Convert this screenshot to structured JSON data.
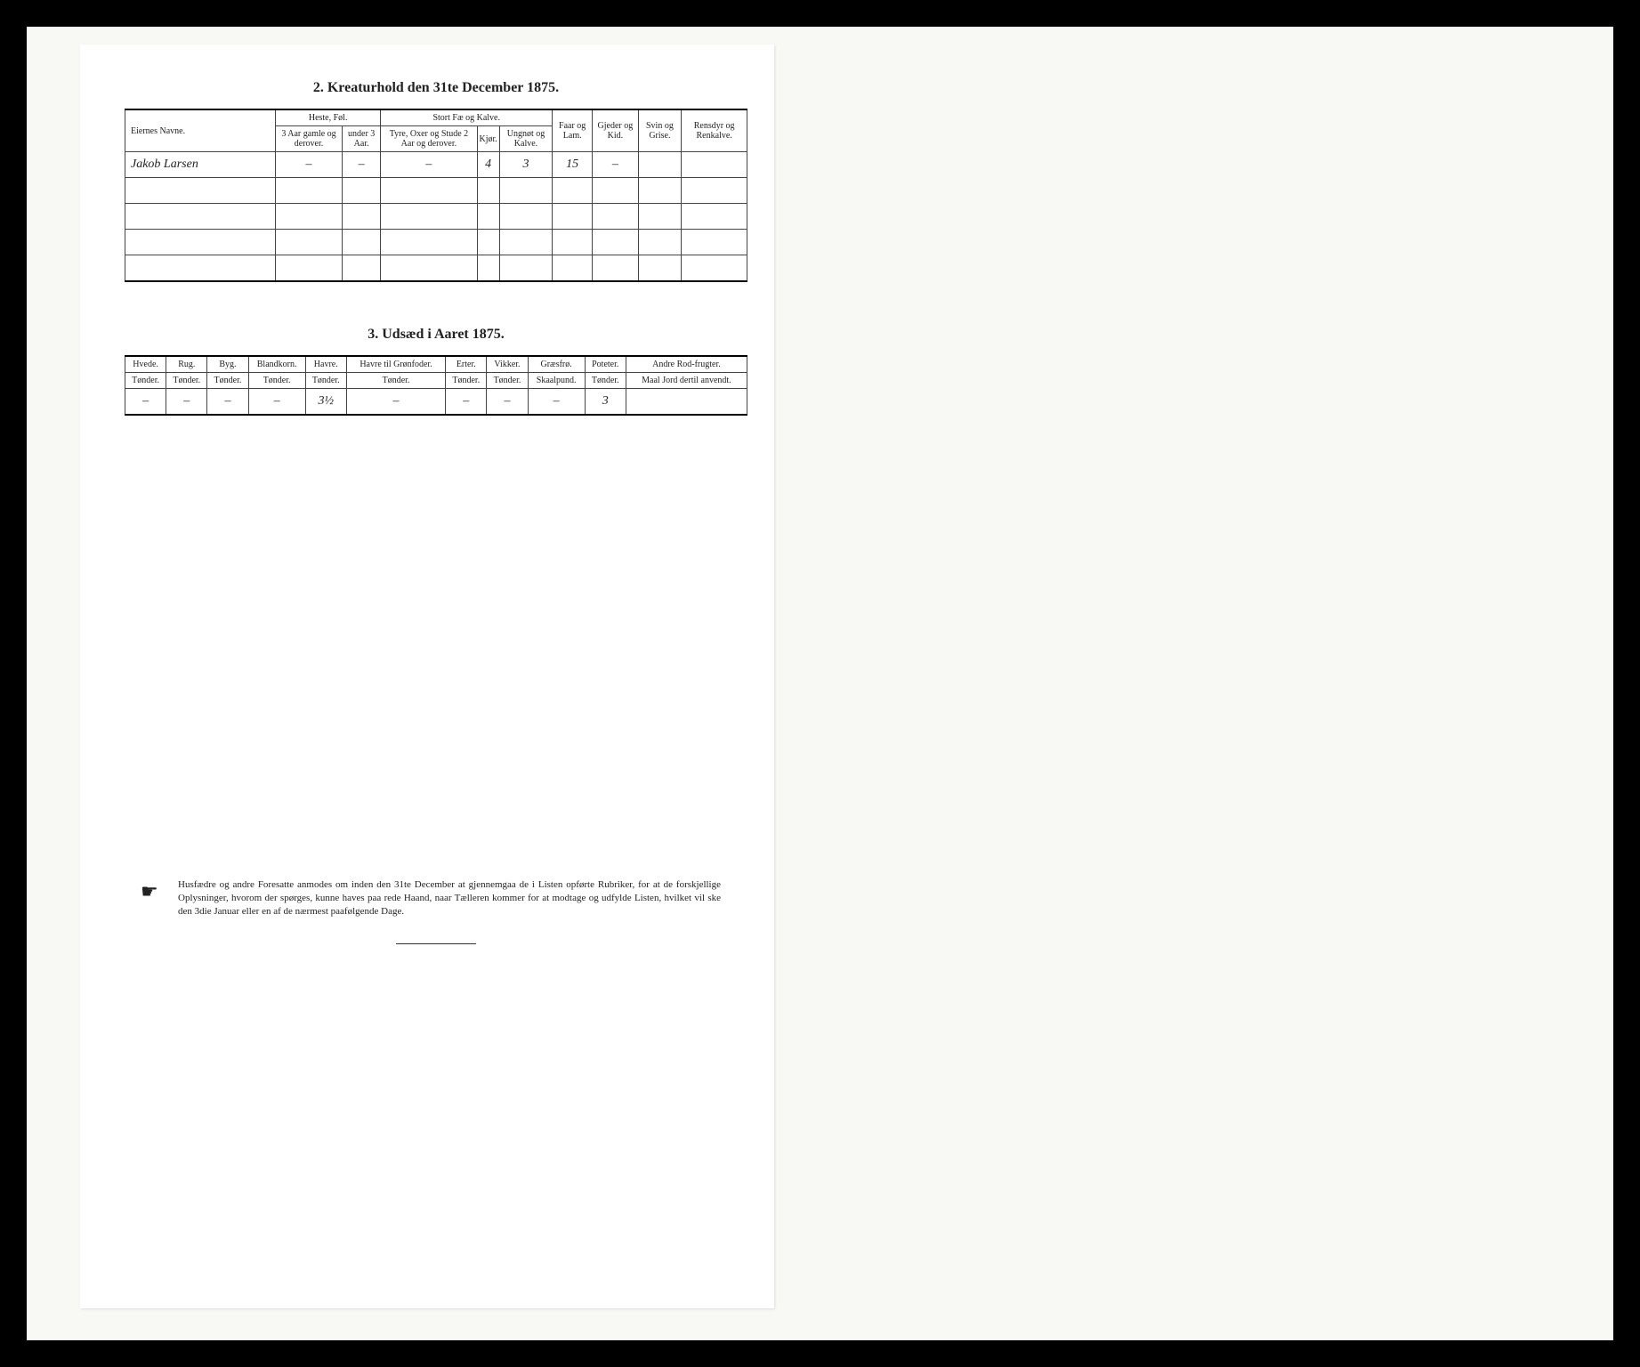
{
  "section2": {
    "title": "2.  Kreaturhold den 31te December 1875.",
    "headers": {
      "name": "Eiernes Navne.",
      "heste_group": "Heste, Føl.",
      "heste_a": "3 Aar gamle og derover.",
      "heste_b": "under 3 Aar.",
      "stort_group": "Stort Fæ og Kalve.",
      "stort_a": "Tyre, Oxer og Stude 2 Aar og derover.",
      "stort_b": "Kjør.",
      "stort_c": "Ungnøt og Kalve.",
      "faar": "Faar og Lam.",
      "gjeder": "Gjeder og Kid.",
      "svin": "Svin og Grise.",
      "rensdyr": "Rensdyr og Renkalve."
    },
    "rows": [
      {
        "name": "Jakob Larsen",
        "heste_a": "–",
        "heste_b": "–",
        "stort_a": "–",
        "stort_b": "4",
        "stort_c": "3",
        "faar": "15",
        "gjeder": "–",
        "svin": "",
        "rensdyr": ""
      },
      {
        "name": "",
        "heste_a": "",
        "heste_b": "",
        "stort_a": "",
        "stort_b": "",
        "stort_c": "",
        "faar": "",
        "gjeder": "",
        "svin": "",
        "rensdyr": ""
      },
      {
        "name": "",
        "heste_a": "",
        "heste_b": "",
        "stort_a": "",
        "stort_b": "",
        "stort_c": "",
        "faar": "",
        "gjeder": "",
        "svin": "",
        "rensdyr": ""
      },
      {
        "name": "",
        "heste_a": "",
        "heste_b": "",
        "stort_a": "",
        "stort_b": "",
        "stort_c": "",
        "faar": "",
        "gjeder": "",
        "svin": "",
        "rensdyr": ""
      },
      {
        "name": "",
        "heste_a": "",
        "heste_b": "",
        "stort_a": "",
        "stort_b": "",
        "stort_c": "",
        "faar": "",
        "gjeder": "",
        "svin": "",
        "rensdyr": ""
      }
    ]
  },
  "section3": {
    "title": "3.  Udsæd i Aaret 1875.",
    "cols": [
      {
        "h": "Hvede.",
        "u": "Tønder."
      },
      {
        "h": "Rug.",
        "u": "Tønder."
      },
      {
        "h": "Byg.",
        "u": "Tønder."
      },
      {
        "h": "Blandkorn.",
        "u": "Tønder."
      },
      {
        "h": "Havre.",
        "u": "Tønder."
      },
      {
        "h": "Havre til Grønfoder.",
        "u": "Tønder."
      },
      {
        "h": "Erter.",
        "u": "Tønder."
      },
      {
        "h": "Vikker.",
        "u": "Tønder."
      },
      {
        "h": "Græsfrø.",
        "u": "Skaalpund."
      },
      {
        "h": "Poteter.",
        "u": "Tønder."
      },
      {
        "h": "Andre Rod-frugter.",
        "u": "Maal Jord dertil anvendt."
      }
    ],
    "row": [
      "–",
      "–",
      "–",
      "–",
      "3½",
      "–",
      "–",
      "–",
      "–",
      "3",
      ""
    ]
  },
  "footer": "Husfædre og andre Foresatte anmodes om inden den 31te December at gjennemgaa de i Listen opførte Rubriker, for at de forskjellige Oplysninger, hvorom der spørges, kunne haves paa rede Haand, naar Tælleren kommer for at modtage og udfylde Listen, hvilket vil ske den 3die Januar eller en af de nærmest paafølgende Dage."
}
